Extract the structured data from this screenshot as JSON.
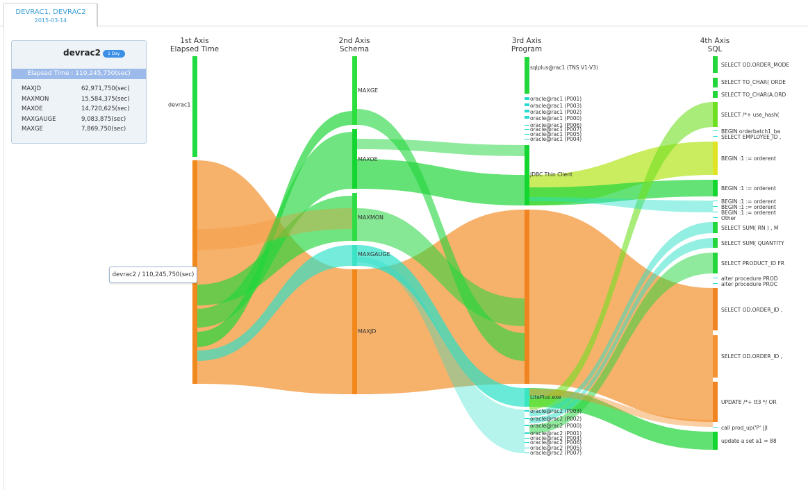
{
  "tab": {
    "title": "DEVRAC1, DEVRAC2",
    "date": "2015-03-14"
  },
  "card": {
    "name": "devrac2",
    "badge": "1 Day",
    "elapsed_bar": "Elapsed Time : 110,245,750(sec)",
    "rows": [
      {
        "label": "MAXJD",
        "value": "62,971,750(sec)"
      },
      {
        "label": "MAXMON",
        "value": "15,584,375(sec)"
      },
      {
        "label": "MAXOE",
        "value": "14,720,625(sec)"
      },
      {
        "label": "MAXGAUGE",
        "value": "9,083,875(sec)"
      },
      {
        "label": "MAXGE",
        "value": "7,869,750(sec)"
      }
    ]
  },
  "tooltip": "devrac2 / 110,245,750(sec)",
  "colors": {
    "orange": "#f39332",
    "green": "#22d63c",
    "cyan": "#29e0c8",
    "yellowgreen": "#d8e82c"
  },
  "chart_data": {
    "type": "sankey",
    "axes": [
      {
        "title": "1st Axis",
        "subtitle": "Elapsed Time"
      },
      {
        "title": "2nd Axis",
        "subtitle": "Schema"
      },
      {
        "title": "3rd Axis",
        "subtitle": "Program"
      },
      {
        "title": "4th Axis",
        "subtitle": "SQL"
      }
    ],
    "nodes": {
      "axis1": [
        {
          "label": "devrac1",
          "color": "#1fdc42"
        },
        {
          "label": "",
          "color": "#f0891e"
        }
      ],
      "axis2": [
        {
          "label": "MAXGE",
          "color": "#2bdf3c"
        },
        {
          "label": "MAXOE",
          "color": "#14d630"
        },
        {
          "label": "MAXMON",
          "color": "#2edd46"
        },
        {
          "label": "MAXGAUGE",
          "color": "#3ce3c4"
        },
        {
          "label": "MAXJD",
          "color": "#f0881a"
        }
      ],
      "axis3": [
        "sqlplus@rac1 (TNS V1-V3)",
        "oracle@rac1 (P001)",
        "oracle@rac1 (P003)",
        "oracle@rac1 (P002)",
        "oracle@rac1 (P000)",
        "oracle@rac1 (P006)",
        "oracle@rac1 (P007)",
        "oracle@rac1 (P005)",
        "oracle@rac1 (P004)",
        "JDBC Thin Client",
        "",
        "LitePlus.exe",
        "oracle@rac2 (P003)",
        "oracle@rac2 (P002)",
        "oracle@rac2 (P000)",
        "oracle@rac2 (P001)",
        "oracle@rac2 (P004)",
        "oracle@rac2 (P006)",
        "oracle@rac2 (P005)",
        "oracle@rac2 (P007)"
      ],
      "axis4": [
        "SELECT OD.ORDER_MODE",
        "SELECT TO_CHAR( ORDE",
        "SELECT TO_CHAR(A.ORD",
        "SELECT /*+ use_hash(",
        "BEGIN orderbatch1_ba",
        "SELECT EMPLOYEE_ID ,",
        "BEGIN :1 := orderent",
        "BEGIN :1 := orderent",
        "BEGIN :1 := orderent",
        "BEGIN :1 := orderent",
        "BEGIN :1 := orderent",
        "Other",
        "SELECT SUM( RN ) , M",
        "SELECT SUM( QUANTITY",
        "SELECT PRODUCT_ID FR",
        "alter procedure PROD",
        "alter procedure PROC",
        "SELECT OD.ORDER_ID ,",
        "SELECT OD.ORDER_ID ,",
        "UPDATE /*+ tt3 */ OR",
        "call prod_up('P' ||I",
        "update a set a1 = 88"
      ]
    },
    "flows": [
      {
        "from": "devrac2",
        "to": "MAXJD",
        "value": 62971750
      },
      {
        "from": "devrac2",
        "to": "MAXMON",
        "value": 15584375
      },
      {
        "from": "devrac2",
        "to": "MAXOE",
        "value": 14720625
      },
      {
        "from": "devrac2",
        "to": "MAXGAUGE",
        "value": 9083875
      },
      {
        "from": "devrac2",
        "to": "MAXGE",
        "value": 7869750
      }
    ]
  }
}
